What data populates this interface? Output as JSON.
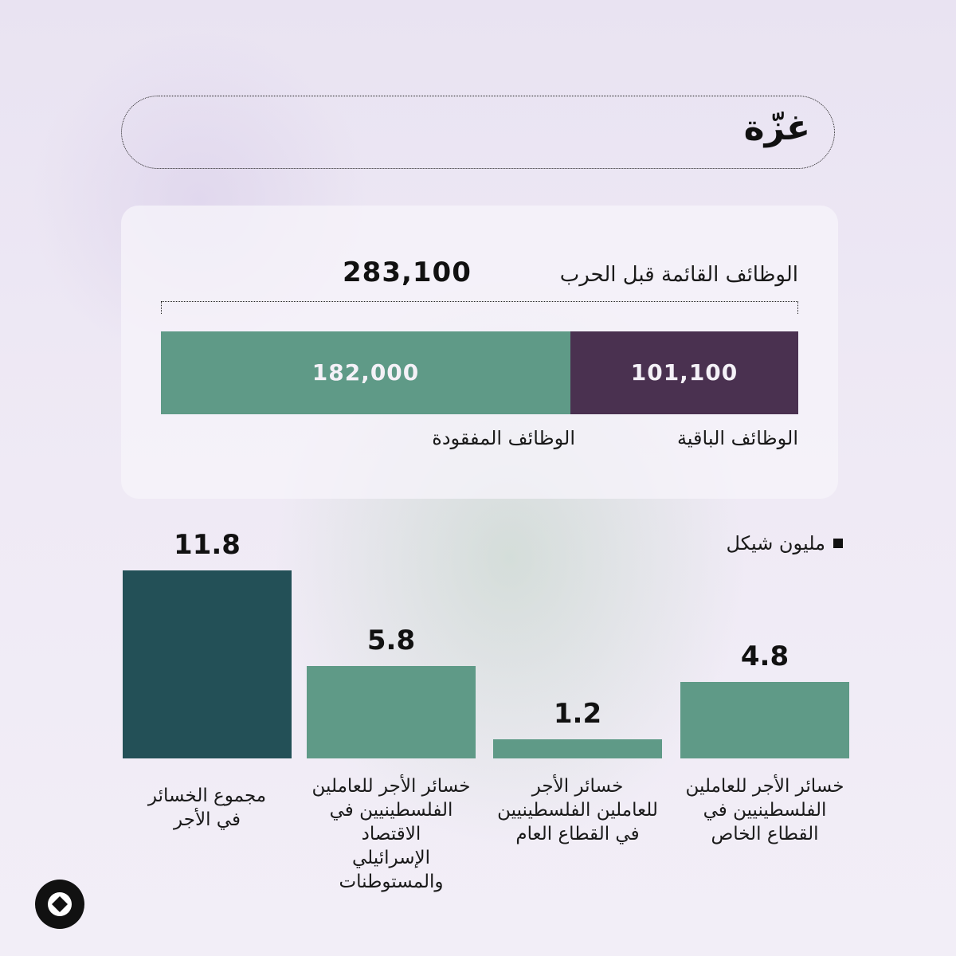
{
  "title": "غزّة",
  "jobs": {
    "total_label": "الوظائف القائمة قبل الحرب",
    "total_value": "283,100",
    "lost_label": "الوظائف المفقودة",
    "remaining_label": "الوظائف الباقية",
    "lost_value_text": "182,000",
    "remaining_value_text": "101,100"
  },
  "legend": {
    "label": "مليون شيكل"
  },
  "colors": {
    "lost": "#5f9a87",
    "remaining": "#4a3150",
    "bar_light": "#5f9a87",
    "bar_dark": "#235057"
  },
  "chart_data": [
    {
      "type": "bar",
      "orientation": "horizontal-stacked",
      "categories": [
        "الوظائف الباقية",
        "الوظائف المفقودة"
      ],
      "values": [
        101100,
        182000
      ],
      "total": 283100
    },
    {
      "type": "bar",
      "unit": "مليون شيكل",
      "categories": [
        "خسائر الأجر للعاملين الفلسطينيين في القطاع الخاص",
        "خسائر الأجر للعاملين الفلسطينيين في القطاع العام",
        "خسائر الأجر للعاملين الفلسطينيين في الاقتصاد الإسرائيلي والمستوطنات",
        "مجموع الخسائر في الأجر"
      ],
      "values": [
        4.8,
        1.2,
        5.8,
        11.8
      ],
      "value_labels": [
        "4.8",
        "1.2",
        "5.8",
        "11.8"
      ],
      "category_lines": [
        [
          "خسائر الأجر للعاملين",
          "الفلسطينيين في",
          "القطاع الخاص"
        ],
        [
          "خسائر الأجر",
          "للعاملين الفلسطينيين",
          "في القطاع العام"
        ],
        [
          "خسائر الأجر للعاملين",
          "الفلسطينيين في الاقتصاد",
          "الإسرائيلي والمستوطنات"
        ],
        [
          "مجموع الخسائر",
          "في الأجر"
        ]
      ]
    }
  ]
}
